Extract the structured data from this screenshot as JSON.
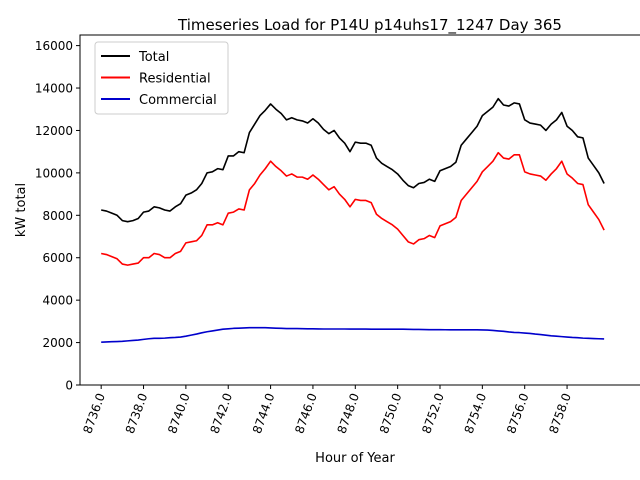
{
  "chart_data": {
    "type": "line",
    "title": "Timeseries Load for P14U p14uhs17_1247  Day 365",
    "xlabel": "Hour of Year",
    "ylabel": "kW total",
    "xlim": [
      8735,
      8760.5
    ],
    "ylim": [
      0,
      16500
    ],
    "x_ticks": [
      8736.0,
      8738.0,
      8740.0,
      8742.0,
      8744.0,
      8746.0,
      8748.0,
      8750.0,
      8752.0,
      8754.0,
      8756.0,
      8758.0
    ],
    "x_tick_labels": [
      "8736.0",
      "8738.0",
      "8740.0",
      "8742.0",
      "8744.0",
      "8746.0",
      "8748.0",
      "8750.0",
      "8752.0",
      "8754.0",
      "8756.0",
      "8758.0"
    ],
    "y_ticks": [
      0,
      2000,
      4000,
      6000,
      8000,
      10000,
      12000,
      14000,
      16000
    ],
    "y_tick_labels": [
      "0",
      "2000",
      "4000",
      "6000",
      "8000",
      "10000",
      "12000",
      "14000",
      "16000"
    ],
    "grid": false,
    "legend_position": "top-left",
    "x_start": 8736.0,
    "x_step": 0.25,
    "series": [
      {
        "name": "Total",
        "color": "#000000",
        "values": [
          8250,
          8200,
          8100,
          8000,
          7750,
          7700,
          7750,
          7850,
          8150,
          8200,
          8400,
          8350,
          8250,
          8200,
          8400,
          8550,
          8950,
          9050,
          9200,
          9500,
          10000,
          10050,
          10200,
          10150,
          10800,
          10800,
          11000,
          10950,
          11900,
          12300,
          12700,
          12950,
          13250,
          13000,
          12800,
          12500,
          12600,
          12500,
          12450,
          12350,
          12550,
          12350,
          12050,
          11850,
          12000,
          11650,
          11400,
          11000,
          11450,
          11400,
          11400,
          11300,
          10700,
          10450,
          10300,
          10150,
          9950,
          9650,
          9400,
          9300,
          9500,
          9550,
          9700,
          9600,
          10100,
          10200,
          10300,
          10500,
          11300,
          11600,
          11900,
          12200,
          12700,
          12900,
          13100,
          13500,
          13200,
          13150,
          13300,
          13250,
          12500,
          12350,
          12300,
          12250,
          12000,
          12300,
          12500,
          12850,
          12200,
          12000,
          11700,
          11650,
          10700,
          10350,
          10000,
          9500
        ]
      },
      {
        "name": "Residential",
        "color": "#ff0000",
        "values": [
          6200,
          6150,
          6050,
          5950,
          5700,
          5650,
          5700,
          5750,
          6000,
          6000,
          6200,
          6150,
          6000,
          6000,
          6200,
          6300,
          6700,
          6750,
          6800,
          7050,
          7550,
          7550,
          7650,
          7550,
          8100,
          8150,
          8300,
          8250,
          9200,
          9500,
          9900,
          10200,
          10550,
          10300,
          10100,
          9850,
          9950,
          9800,
          9800,
          9700,
          9900,
          9700,
          9450,
          9200,
          9350,
          9000,
          8750,
          8400,
          8750,
          8700,
          8700,
          8600,
          8050,
          7850,
          7700,
          7550,
          7350,
          7050,
          6750,
          6650,
          6850,
          6900,
          7050,
          6950,
          7500,
          7600,
          7700,
          7900,
          8700,
          9000,
          9300,
          9600,
          10050,
          10300,
          10550,
          10950,
          10700,
          10650,
          10850,
          10850,
          10050,
          9950,
          9900,
          9850,
          9650,
          9950,
          10200,
          10550,
          9950,
          9750,
          9500,
          9450,
          8500,
          8150,
          7800,
          7300
        ]
      },
      {
        "name": "Commercial",
        "color": "#0000cc",
        "values": [
          2020,
          2030,
          2040,
          2050,
          2060,
          2080,
          2100,
          2120,
          2150,
          2180,
          2200,
          2200,
          2210,
          2230,
          2240,
          2260,
          2300,
          2350,
          2400,
          2460,
          2510,
          2550,
          2590,
          2630,
          2650,
          2670,
          2680,
          2690,
          2700,
          2700,
          2700,
          2700,
          2690,
          2680,
          2670,
          2660,
          2660,
          2660,
          2655,
          2650,
          2650,
          2645,
          2640,
          2640,
          2640,
          2640,
          2640,
          2635,
          2635,
          2635,
          2635,
          2630,
          2630,
          2630,
          2630,
          2630,
          2630,
          2630,
          2625,
          2620,
          2620,
          2615,
          2610,
          2610,
          2610,
          2605,
          2600,
          2600,
          2600,
          2600,
          2600,
          2600,
          2595,
          2590,
          2570,
          2550,
          2530,
          2500,
          2480,
          2470,
          2450,
          2430,
          2400,
          2380,
          2350,
          2320,
          2300,
          2280,
          2260,
          2240,
          2230,
          2210,
          2200,
          2190,
          2180,
          2170
        ]
      }
    ]
  }
}
